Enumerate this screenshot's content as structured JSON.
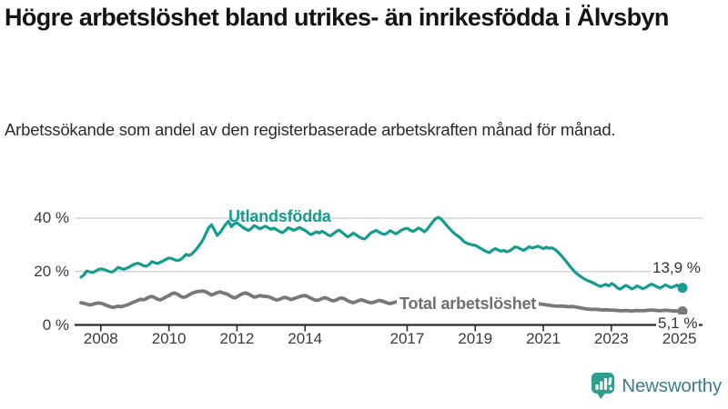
{
  "header": {
    "title": "Högre arbetslöshet bland utrikes- än inrikesfödda i Älvsbyn",
    "subtitle": "Arbetssökande som andel av den registerbaserade arbetskraften månad för månad."
  },
  "chart_data": {
    "type": "line",
    "title": "Högre arbetslöshet bland utrikes- än inrikesfödda i Älvsbyn",
    "unit": "%",
    "x_start": "2007-06",
    "x_end": "2025-02",
    "x_interval": "monthly",
    "x_ticks": [
      2008,
      2010,
      2012,
      2014,
      2017,
      2019,
      2021,
      2023,
      2025
    ],
    "y_ticks": [
      {
        "value": 0,
        "label": "0 %"
      },
      {
        "value": 20,
        "label": "20 %"
      },
      {
        "value": 40,
        "label": "40 %"
      }
    ],
    "ylim": [
      0,
      42
    ],
    "grid": "horizontal",
    "legend_position": "inline-labels",
    "colors": {
      "foreign_born": "#149d8e",
      "total": "#787878",
      "grid": "#cccccc",
      "axis": "#2a2a2a",
      "tick_text": "#3a3a3a"
    },
    "series": [
      {
        "name": "Utlandsfödda",
        "color": "#149d8e",
        "end_label": "13,9 %",
        "end_value": 13.9,
        "values": [
          17.9,
          18.7,
          20.2,
          19.9,
          19.6,
          20.1,
          20.7,
          21.0,
          20.8,
          20.4,
          20.0,
          19.8,
          20.5,
          21.5,
          21.2,
          20.8,
          21.2,
          21.7,
          22.3,
          22.8,
          23.1,
          22.7,
          22.2,
          22.0,
          22.6,
          23.7,
          23.3,
          23.0,
          23.5,
          24.0,
          24.6,
          25.1,
          24.9,
          24.4,
          24.1,
          24.4,
          25.3,
          26.4,
          26.0,
          26.5,
          27.6,
          28.8,
          30.3,
          31.9,
          34.2,
          36.4,
          37.5,
          35.6,
          33.5,
          34.6,
          36.2,
          37.7,
          38.8,
          36.8,
          37.9,
          38.2,
          37.4,
          36.6,
          35.9,
          35.4,
          36.1,
          37.2,
          36.7,
          36.0,
          36.5,
          37.0,
          36.4,
          35.8,
          36.3,
          35.6,
          35.0,
          34.6,
          35.3,
          36.4,
          36.0,
          35.4,
          36.0,
          36.5,
          35.9,
          35.4,
          34.6,
          33.8,
          34.3,
          34.9,
          34.4,
          35.1,
          34.5,
          33.7,
          33.4,
          34.2,
          35.0,
          35.5,
          34.7,
          33.8,
          33.0,
          33.6,
          34.4,
          33.7,
          33.0,
          32.4,
          32.2,
          33.2,
          34.3,
          34.9,
          35.4,
          34.8,
          34.2,
          33.9,
          34.5,
          35.3,
          34.7,
          34.1,
          34.8,
          35.5,
          36.0,
          36.2,
          35.5,
          35.0,
          35.6,
          36.3,
          35.7,
          34.9,
          35.8,
          37.2,
          38.6,
          39.8,
          40.3,
          39.6,
          38.4,
          37.1,
          36.0,
          34.9,
          33.9,
          33.2,
          32.3,
          31.2,
          30.6,
          30.2,
          30.0,
          29.8,
          29.2,
          28.6,
          28.0,
          27.4,
          27.1,
          28.0,
          28.6,
          28.1,
          27.6,
          27.9,
          27.4,
          27.7,
          28.4,
          29.2,
          29.0,
          28.4,
          27.9,
          28.6,
          29.3,
          28.8,
          29.1,
          29.5,
          29.0,
          28.6,
          29.1,
          28.7,
          28.9,
          28.3,
          27.4,
          26.3,
          25.1,
          23.8,
          22.4,
          21.1,
          19.9,
          19.0,
          18.2,
          17.5,
          16.9,
          16.4,
          16.0,
          15.5,
          14.9,
          14.4,
          14.8,
          15.2,
          14.6,
          15.5,
          14.9,
          13.9,
          13.4,
          14.1,
          14.8,
          14.3,
          13.5,
          13.9,
          14.6,
          14.1,
          13.6,
          14.0,
          14.7,
          15.3,
          14.9,
          14.3,
          13.8,
          14.4,
          15.0,
          14.5,
          14.0,
          14.4,
          14.9,
          14.4,
          13.9
        ]
      },
      {
        "name": "Total arbetslöshet",
        "color": "#787878",
        "end_label": "5,1 %",
        "end_value": 5.1,
        "values": [
          8.3,
          8.1,
          7.8,
          7.5,
          7.7,
          8.0,
          8.2,
          8.1,
          7.8,
          7.3,
          6.9,
          6.6,
          6.7,
          7.0,
          6.8,
          7.1,
          7.4,
          7.8,
          8.3,
          8.7,
          9.2,
          9.6,
          9.4,
          9.8,
          10.4,
          10.7,
          10.2,
          9.6,
          9.4,
          9.9,
          10.5,
          11.0,
          11.7,
          12.0,
          11.5,
          10.8,
          10.3,
          10.6,
          11.2,
          11.8,
          12.2,
          12.5,
          12.6,
          12.7,
          12.4,
          11.8,
          11.2,
          11.6,
          12.1,
          12.4,
          12.0,
          11.7,
          11.3,
          10.6,
          10.1,
          10.5,
          11.2,
          11.7,
          12.0,
          11.6,
          11.0,
          10.4,
          10.6,
          11.0,
          10.8,
          10.7,
          10.6,
          10.2,
          9.7,
          9.3,
          9.6,
          10.1,
          10.3,
          9.9,
          9.5,
          9.8,
          10.2,
          10.6,
          10.9,
          11.0,
          10.6,
          10.0,
          9.5,
          9.2,
          9.4,
          9.9,
          10.2,
          9.8,
          9.3,
          9.0,
          9.4,
          9.9,
          10.1,
          9.7,
          9.1,
          8.6,
          8.3,
          8.7,
          9.2,
          9.4,
          9.0,
          8.6,
          8.3,
          8.4,
          8.8,
          9.2,
          9.0,
          8.6,
          8.2,
          8.0,
          8.3,
          8.6,
          8.4,
          8.2,
          8.5,
          8.8,
          8.6,
          8.3,
          8.0,
          7.8,
          8.1,
          8.4,
          8.2,
          7.9,
          7.7,
          8.0,
          8.3,
          8.5,
          8.3,
          8.0,
          7.7,
          7.5,
          7.7,
          8.0,
          7.8,
          7.6,
          7.4,
          7.6,
          7.9,
          8.1,
          8.3,
          8.0,
          7.8,
          7.6,
          7.8,
          8.1,
          7.9,
          7.7,
          7.8,
          8.0,
          8.2,
          8.4,
          8.6,
          8.8,
          8.7,
          8.5,
          8.3,
          8.5,
          8.7,
          8.4,
          8.2,
          8.0,
          7.8,
          7.7,
          7.5,
          7.4,
          7.2,
          7.1,
          7.0,
          7.1,
          7.0,
          6.9,
          6.8,
          6.9,
          6.8,
          6.6,
          6.4,
          6.2,
          6.0,
          5.9,
          5.8,
          5.9,
          5.8,
          5.7,
          5.6,
          5.7,
          5.6,
          5.6,
          5.5,
          5.4,
          5.3,
          5.3,
          5.4,
          5.3,
          5.2,
          5.3,
          5.4,
          5.3,
          5.3,
          5.4,
          5.5,
          5.6,
          5.5,
          5.4,
          5.3,
          5.4,
          5.5,
          5.4,
          5.3,
          5.2,
          5.2,
          5.2,
          5.1
        ]
      }
    ]
  },
  "footer": {
    "brand": "Newsworthy",
    "logo_icon": "bar-chart-speech-bubble-icon",
    "brand_color": "#3b7e8e",
    "icon_color": "#2e9e90"
  }
}
